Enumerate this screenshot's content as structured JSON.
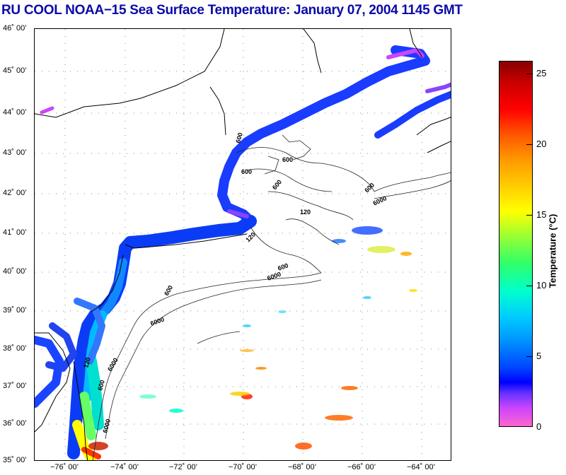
{
  "title": "RU COOL  NOAA−15  Sea Surface Temperature:  January 07, 2004 1145 GMT",
  "latitude_labels": [
    "46˚ 00’",
    "45˚ 00’",
    "44˚ 00’",
    "43˚ 00’",
    "42˚ 00’",
    "41˚ 00’",
    "40˚ 00’",
    "39˚ 00’",
    "38˚ 00’",
    "37˚ 00’",
    "36˚ 00’",
    "35˚ 00’"
  ],
  "longitude_labels": [
    "−76˚ 00’",
    "−74˚ 00’",
    "−72˚ 00’",
    "−70˚ 00’",
    "−68˚ 00’",
    "−66˚ 00’",
    "−64˚ 00’"
  ],
  "colorbar": {
    "title": "Temperature (°C)",
    "tick_labels": [
      "25",
      "20",
      "15",
      "10",
      "5",
      "0"
    ],
    "range": [
      0,
      26
    ]
  },
  "contours": {
    "depth_labels": [
      "600",
      "600",
      "600",
      "600",
      "120",
      "120",
      "600",
      "6000",
      "600",
      "6000",
      "600",
      "6000",
      "6000",
      "120",
      "600",
      "6000"
    ]
  }
}
